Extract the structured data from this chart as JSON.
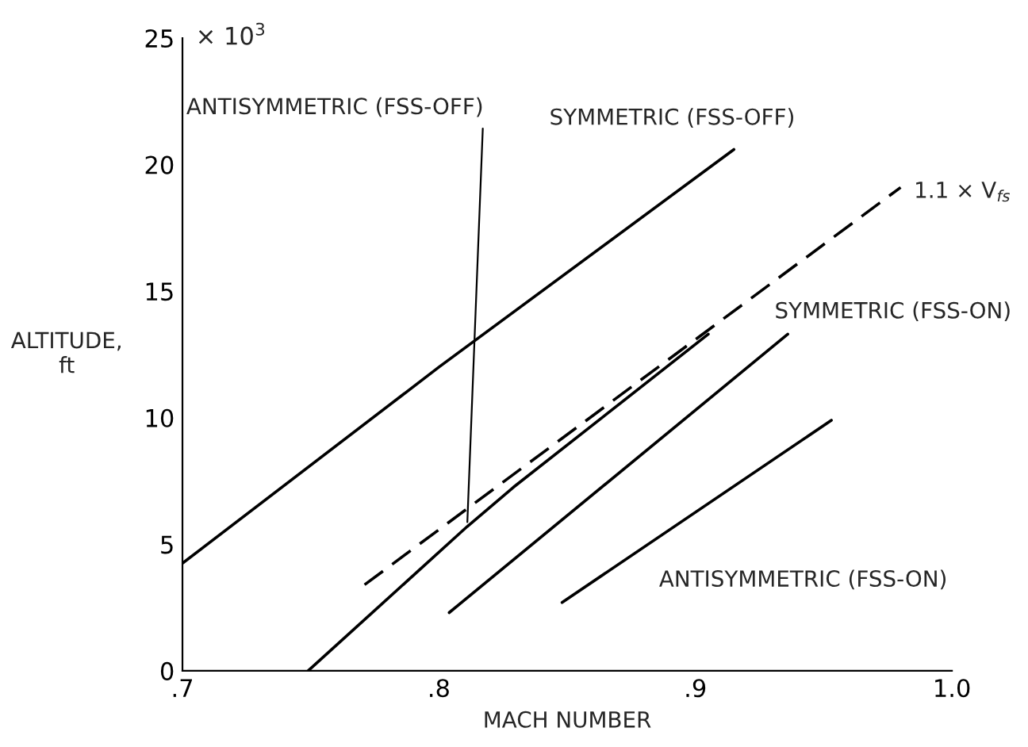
{
  "chart_data": {
    "type": "line",
    "xlabel": "MACH NUMBER",
    "ylabel": "ALTITUDE,\nft",
    "xlim": [
      0.7,
      1.0
    ],
    "ylim": [
      0,
      25
    ],
    "xticks": [
      {
        "value": 0.7,
        "label": ".7"
      },
      {
        "value": 0.8,
        "label": ".8"
      },
      {
        "value": 0.9,
        "label": ".9"
      },
      {
        "value": 1.0,
        "label": "1.0"
      }
    ],
    "yticks": [
      0,
      5,
      10,
      15,
      20,
      25
    ],
    "grid": false,
    "legend": false,
    "marker": "none",
    "annotations": [
      "× 10$^{3}$"
    ],
    "series": [
      {
        "name": "SYMMETRIC (FSS-OFF)",
        "color": "#000000",
        "line_style": "solid",
        "x": [
          0.7,
          0.8,
          0.915
        ],
        "values": [
          4.25,
          12.0,
          20.6
        ]
      },
      {
        "name": "ANTISYMMETRIC (FSS-OFF)",
        "color": "#000000",
        "line_style": "solid",
        "x": [
          0.749,
          0.811,
          0.829,
          0.905
        ],
        "values": [
          0,
          5.7,
          7.25,
          13.3
        ]
      },
      {
        "name": "1.1 × V$_{fs}$",
        "color": "#000000",
        "line_style": "dashed",
        "x": [
          0.771,
          0.98
        ],
        "values": [
          3.4,
          19.1
        ]
      },
      {
        "name": "SYMMETRIC (FSS-ON)",
        "color": "#000000",
        "line_style": "solid",
        "x": [
          0.804,
          0.936
        ],
        "values": [
          2.3,
          13.3
        ]
      },
      {
        "name": "ANTISYMMETRIC (FSS-ON)",
        "color": "#000000",
        "line_style": "solid",
        "x": [
          0.848,
          0.953
        ],
        "values": [
          2.7,
          9.9
        ]
      }
    ]
  }
}
